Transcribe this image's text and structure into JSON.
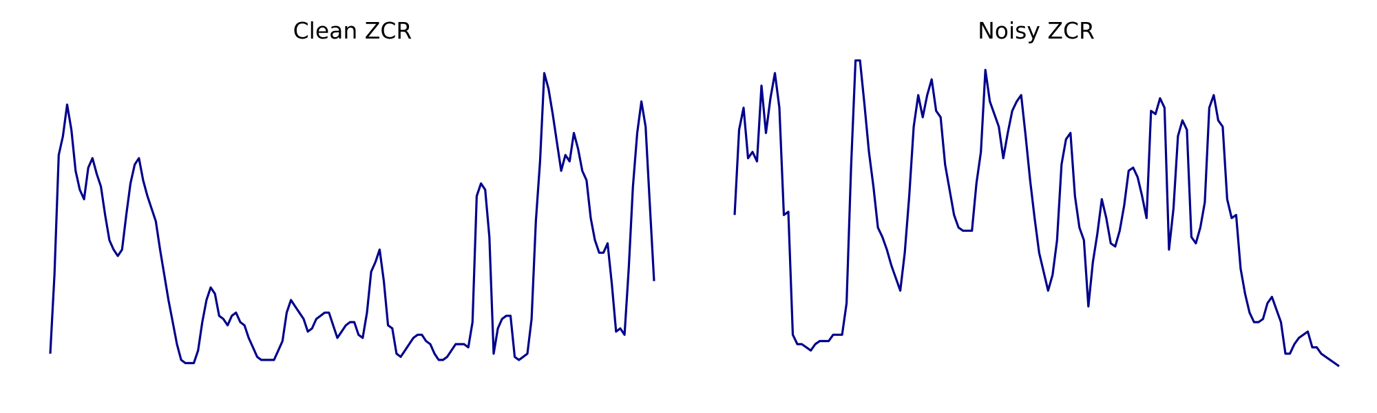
{
  "line_color": "#00008b",
  "chart_data": [
    {
      "type": "line",
      "title": "Clean ZCR",
      "axes_visible": false,
      "grid": false,
      "ylim": [
        0,
        1
      ],
      "series": [
        {
          "values": [
            0.09,
            0.34,
            0.72,
            0.78,
            0.88,
            0.8,
            0.67,
            0.61,
            0.58,
            0.68,
            0.71,
            0.66,
            0.62,
            0.53,
            0.45,
            0.42,
            0.4,
            0.42,
            0.53,
            0.63,
            0.69,
            0.71,
            0.64,
            0.59,
            0.55,
            0.51,
            0.42,
            0.34,
            0.26,
            0.19,
            0.12,
            0.07,
            0.06,
            0.06,
            0.06,
            0.1,
            0.19,
            0.26,
            0.3,
            0.28,
            0.21,
            0.2,
            0.18,
            0.21,
            0.22,
            0.19,
            0.18,
            0.14,
            0.11,
            0.08,
            0.07,
            0.07,
            0.07,
            0.07,
            0.1,
            0.13,
            0.22,
            0.26,
            0.24,
            0.22,
            0.2,
            0.16,
            0.17,
            0.2,
            0.21,
            0.22,
            0.22,
            0.18,
            0.14,
            0.16,
            0.18,
            0.19,
            0.19,
            0.15,
            0.14,
            0.22,
            0.35,
            0.38,
            0.42,
            0.32,
            0.18,
            0.17,
            0.09,
            0.08,
            0.1,
            0.12,
            0.14,
            0.15,
            0.15,
            0.13,
            0.12,
            0.09,
            0.07,
            0.07,
            0.08,
            0.1,
            0.12,
            0.12,
            0.12,
            0.11,
            0.19,
            0.59,
            0.63,
            0.61,
            0.46,
            0.09,
            0.17,
            0.2,
            0.21,
            0.21,
            0.08,
            0.07,
            0.08,
            0.09,
            0.2,
            0.51,
            0.7,
            0.98,
            0.93,
            0.85,
            0.76,
            0.67,
            0.72,
            0.7,
            0.79,
            0.74,
            0.67,
            0.64,
            0.52,
            0.45,
            0.41,
            0.41,
            0.44,
            0.31,
            0.16,
            0.17,
            0.15,
            0.36,
            0.62,
            0.79,
            0.89,
            0.81,
            0.56,
            0.32
          ]
        }
      ]
    },
    {
      "type": "line",
      "title": "Noisy ZCR",
      "axes_visible": false,
      "grid": false,
      "ylim": [
        0,
        1
      ],
      "series": [
        {
          "values": [
            0.53,
            0.8,
            0.87,
            0.71,
            0.73,
            0.7,
            0.94,
            0.79,
            0.9,
            0.98,
            0.87,
            0.53,
            0.54,
            0.15,
            0.12,
            0.12,
            0.11,
            0.1,
            0.12,
            0.13,
            0.13,
            0.13,
            0.15,
            0.15,
            0.15,
            0.25,
            0.68,
            1.02,
            1.02,
            0.88,
            0.73,
            0.62,
            0.49,
            0.46,
            0.42,
            0.37,
            0.33,
            0.29,
            0.41,
            0.59,
            0.81,
            0.91,
            0.84,
            0.91,
            0.96,
            0.86,
            0.84,
            0.69,
            0.61,
            0.53,
            0.49,
            0.48,
            0.48,
            0.48,
            0.63,
            0.73,
            0.99,
            0.89,
            0.85,
            0.81,
            0.71,
            0.79,
            0.86,
            0.89,
            0.91,
            0.78,
            0.64,
            0.52,
            0.41,
            0.35,
            0.29,
            0.34,
            0.45,
            0.69,
            0.77,
            0.79,
            0.59,
            0.49,
            0.45,
            0.24,
            0.38,
            0.47,
            0.58,
            0.52,
            0.44,
            0.43,
            0.48,
            0.56,
            0.67,
            0.68,
            0.65,
            0.59,
            0.52,
            0.86,
            0.85,
            0.9,
            0.87,
            0.42,
            0.55,
            0.78,
            0.83,
            0.8,
            0.46,
            0.44,
            0.49,
            0.57,
            0.87,
            0.91,
            0.83,
            0.81,
            0.58,
            0.52,
            0.53,
            0.36,
            0.28,
            0.22,
            0.19,
            0.19,
            0.2,
            0.25,
            0.27,
            0.23,
            0.19,
            0.09,
            0.09,
            0.12,
            0.14,
            0.15,
            0.16,
            0.11,
            0.11,
            0.09,
            0.08,
            0.07,
            0.06,
            0.05
          ]
        }
      ]
    }
  ]
}
